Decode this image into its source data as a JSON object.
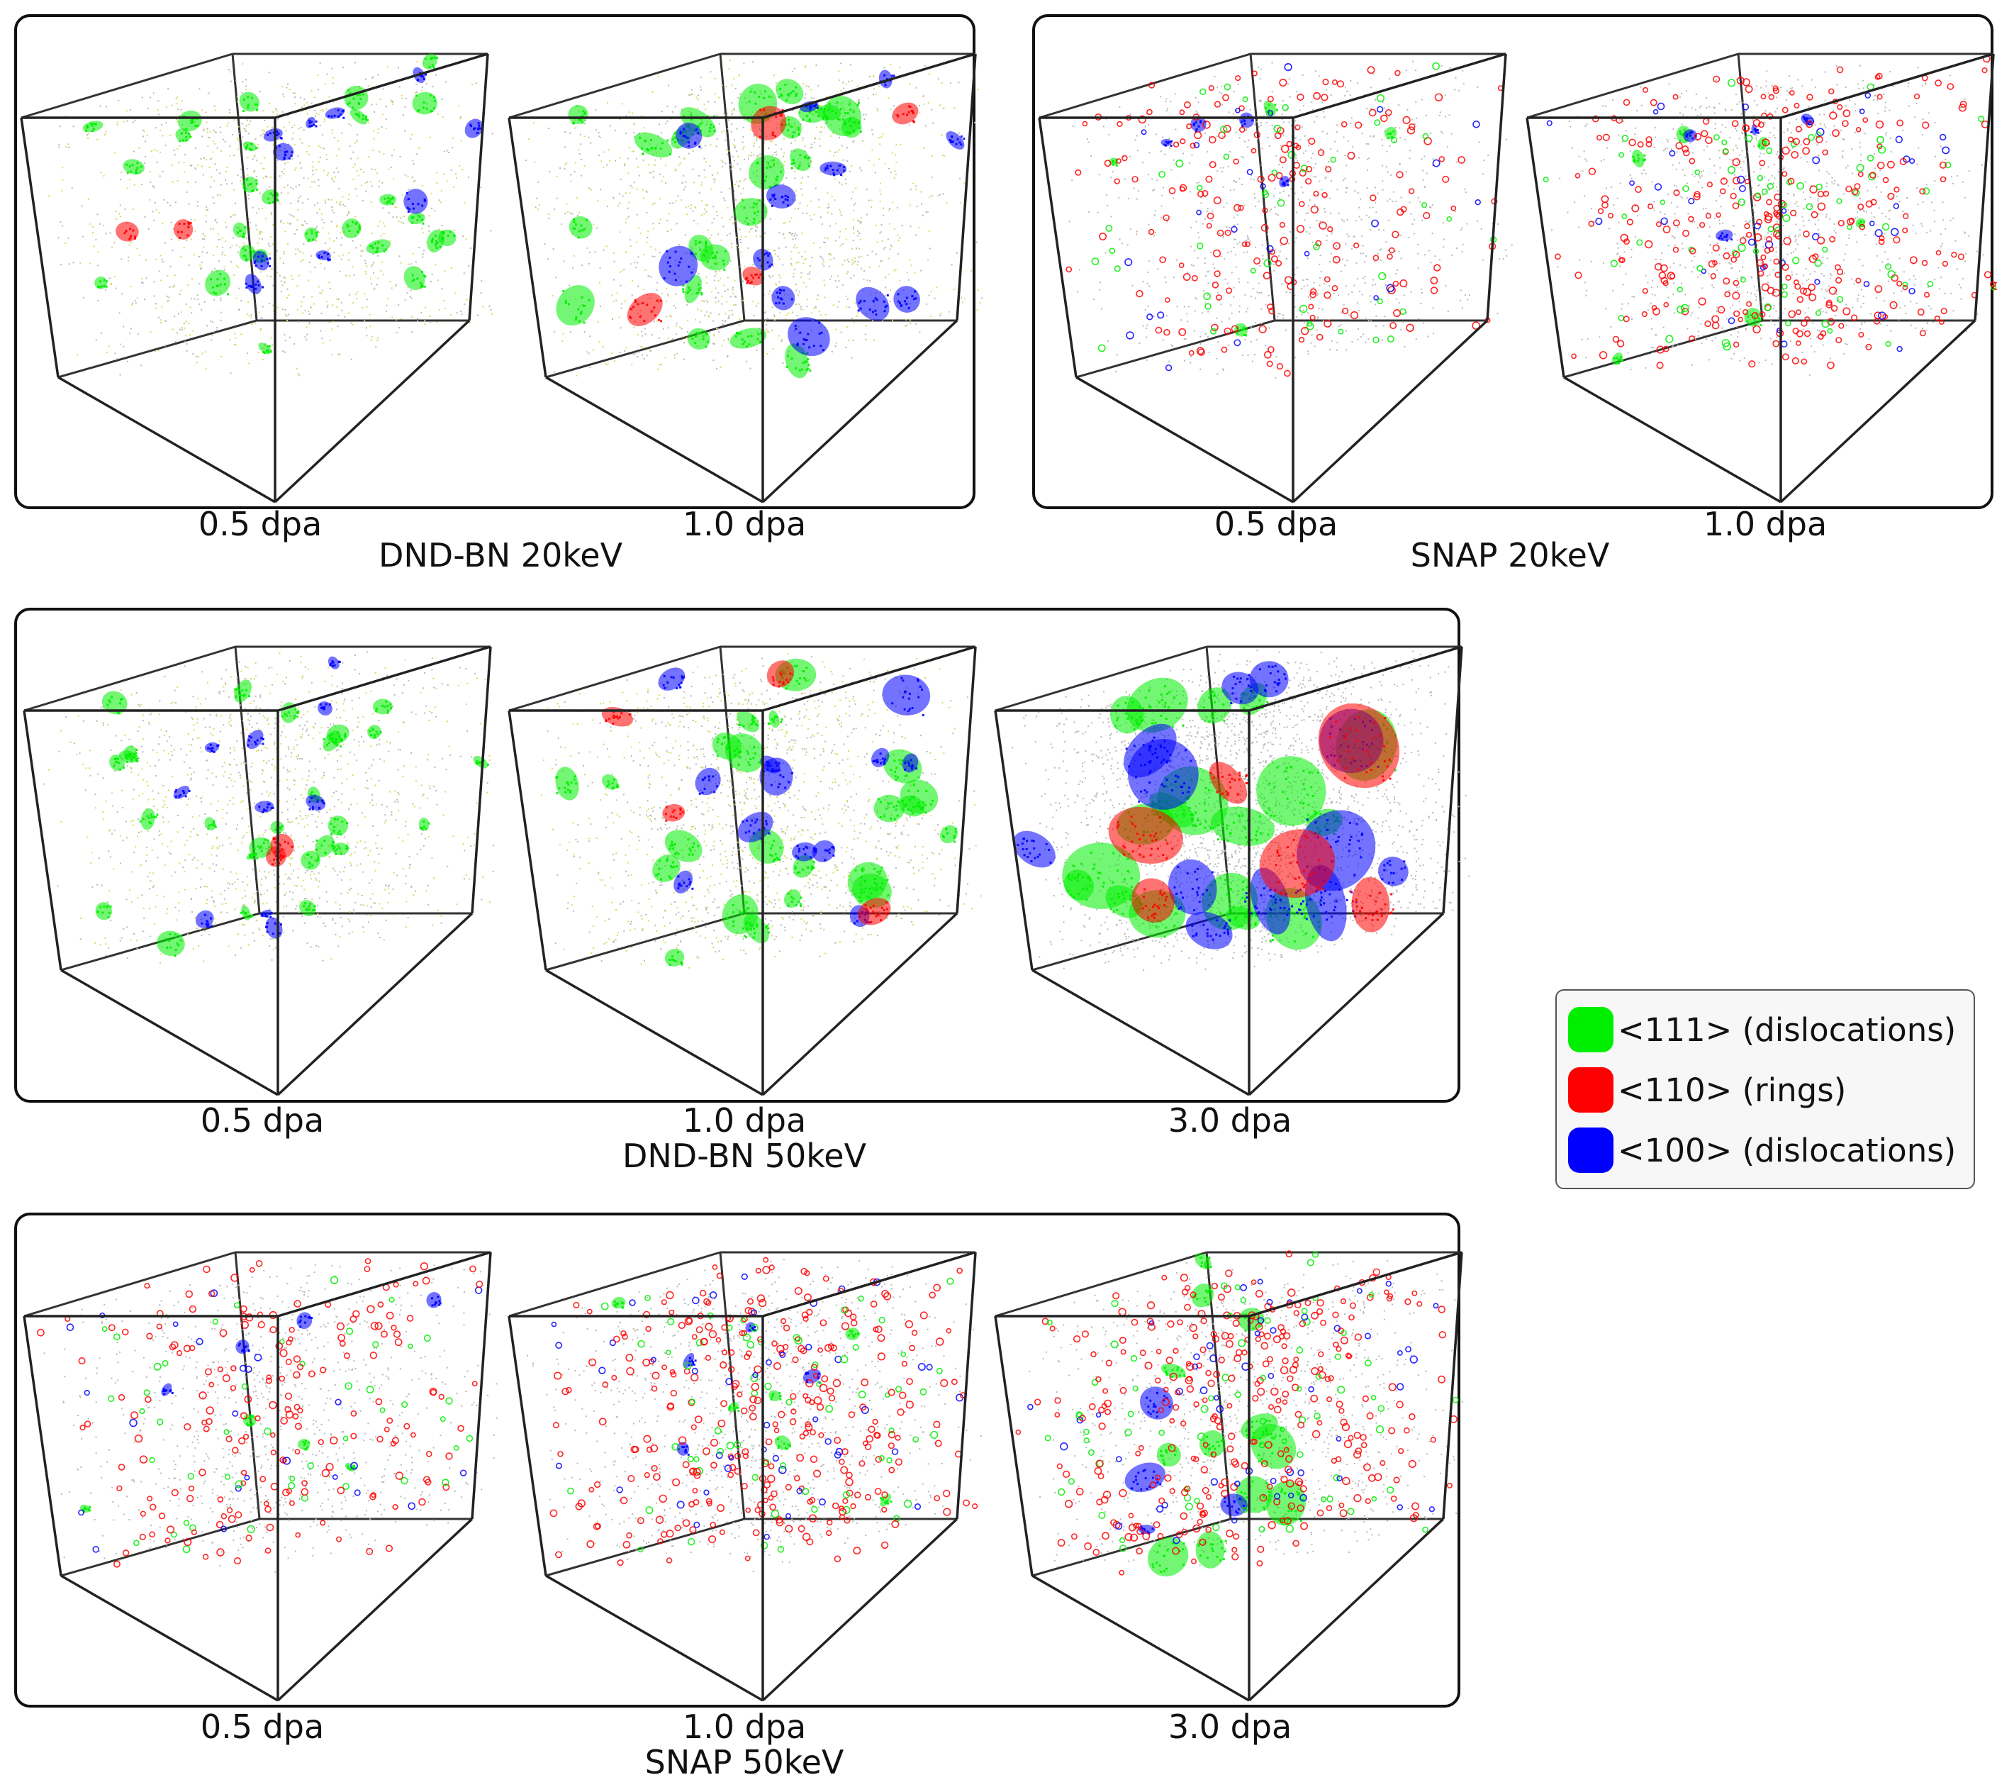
{
  "colors": {
    "dislocations_111": "#00ee00",
    "rings_110": "#ff0000",
    "dislocations_100": "#0000ff",
    "debris": "#b8b8b8",
    "yellow_debris": "#d9d96a"
  },
  "groups": [
    {
      "title": "DND-BN 20keV",
      "cubes": [
        {
          "label": "0.5 dpa",
          "style": "dndbn_low"
        },
        {
          "label": "1.0 dpa",
          "style": "dndbn_mid"
        }
      ]
    },
    {
      "title": "SNAP 20keV",
      "cubes": [
        {
          "label": "0.5 dpa",
          "style": "snap_low"
        },
        {
          "label": "1.0 dpa",
          "style": "snap_mid"
        }
      ]
    },
    {
      "title": "DND-BN 50keV",
      "cubes": [
        {
          "label": "0.5 dpa",
          "style": "dndbn_low"
        },
        {
          "label": "1.0 dpa",
          "style": "dndbn_mid"
        },
        {
          "label": "3.0 dpa",
          "style": "dndbn_high"
        }
      ]
    },
    {
      "title": "SNAP 50keV",
      "cubes": [
        {
          "label": "0.5 dpa",
          "style": "snap_low"
        },
        {
          "label": "1.0 dpa",
          "style": "snap_mid"
        },
        {
          "label": "3.0 dpa",
          "style": "snap_high"
        }
      ]
    }
  ],
  "legend": {
    "items": [
      {
        "label": "<111> (dislocations)",
        "color": "#00ee00"
      },
      {
        "label": "<110> (rings)",
        "color": "#ff0000"
      },
      {
        "label": "<100> (dislocations)",
        "color": "#0000ff"
      }
    ]
  }
}
